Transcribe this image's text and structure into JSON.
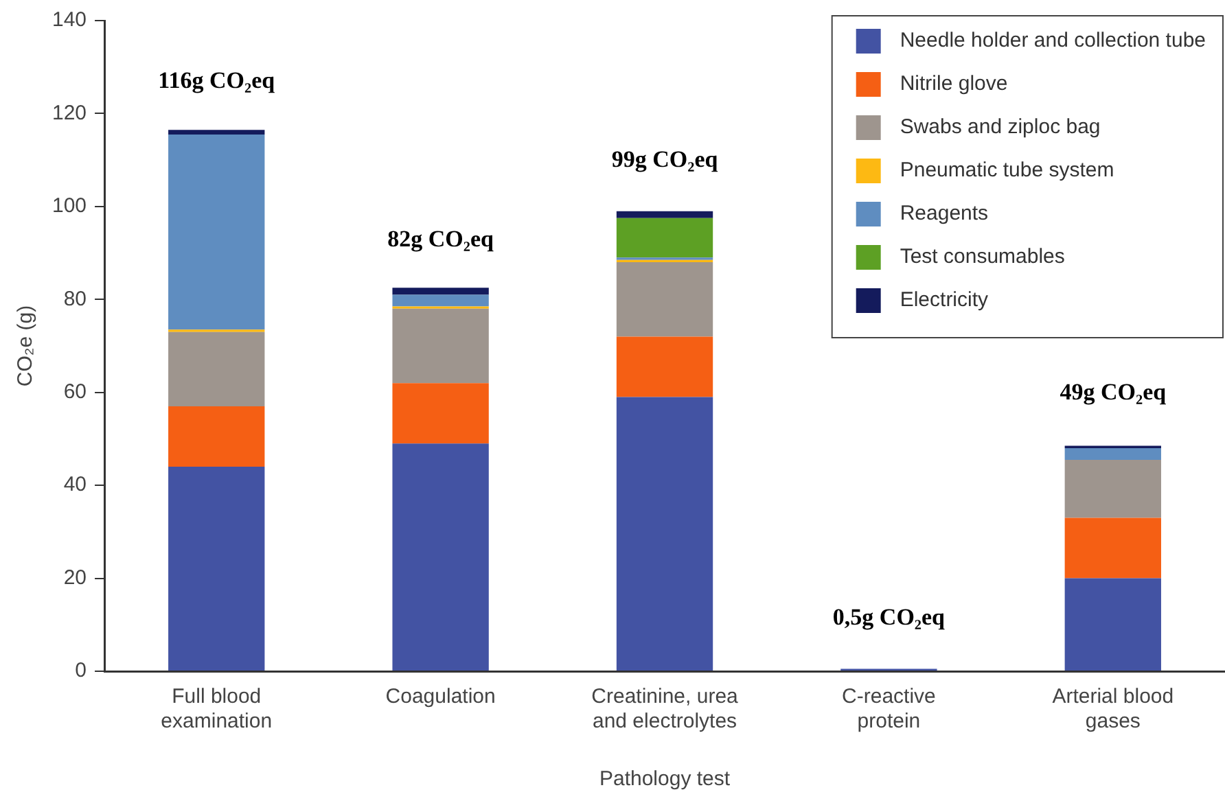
{
  "chart_data": {
    "type": "bar",
    "stacked": true,
    "xlabel": "Pathology test",
    "ylabel": "CO₂e (g)",
    "categories": [
      "Full blood examination",
      "Coagulation",
      "Creatinine, urea and electrolytes",
      "C-reactive protein",
      "Arterial blood gases"
    ],
    "series": [
      {
        "name": "Needle holder and collection tube",
        "color": "#4353a3",
        "values": [
          44,
          49,
          59,
          0.5,
          20
        ]
      },
      {
        "name": "Nitrile glove",
        "color": "#f55f14",
        "values": [
          13,
          13,
          13,
          null,
          13
        ]
      },
      {
        "name": "Swabs and ziploc bag",
        "color": "#9e958e",
        "values": [
          16,
          16,
          16,
          null,
          12.5
        ]
      },
      {
        "name": "Pneumatic tube system",
        "color": "#fdb913",
        "values": [
          0.5,
          0.5,
          0.5,
          null,
          null
        ]
      },
      {
        "name": "Reagents",
        "color": "#5f8dc0",
        "values": [
          42,
          2.5,
          0.5,
          null,
          2.5
        ]
      },
      {
        "name": "Test consumables",
        "color": "#5da024",
        "values": [
          null,
          null,
          8.5,
          null,
          null
        ]
      },
      {
        "name": "Electricity",
        "color": "#141b5c",
        "values": [
          1,
          1.5,
          1.5,
          null,
          0.5
        ]
      }
    ],
    "ylim": [
      0,
      140
    ],
    "yticks": [
      0,
      20,
      40,
      60,
      80,
      100,
      120,
      140
    ],
    "grid": false,
    "legend": "top right",
    "annotations": [
      {
        "text": "116g CO₂eq",
        "x": "Full blood examination",
        "y": 116
      },
      {
        "text": "82g CO₂eq",
        "x": "Coagulation",
        "y": 82
      },
      {
        "text": "99g CO₂eq",
        "x": "Creatinine, urea and electrolytes",
        "y": 99
      },
      {
        "text": "0,5g CO₂eq",
        "x": "C-reactive protein",
        "y": 0.5
      },
      {
        "text": "49g CO₂eq",
        "x": "Arterial blood gases",
        "y": 49
      }
    ]
  }
}
